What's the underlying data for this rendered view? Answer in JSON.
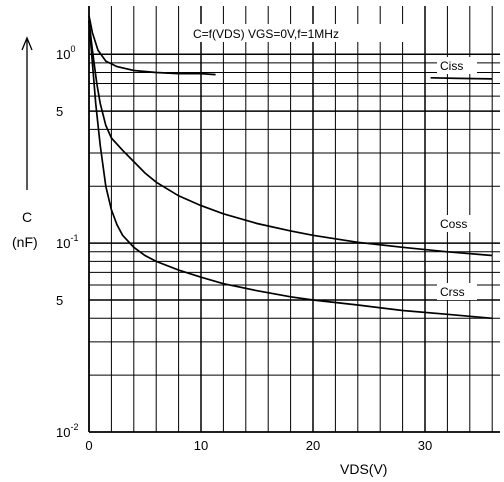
{
  "chart_data": {
    "type": "line",
    "title": "C=f(VDS) VGS=0V,f=1MHz",
    "xlabel": "VDS(V)",
    "ylabel": "C",
    "ylabel_unit": "(nF)",
    "xlim": [
      0,
      36
    ],
    "ylim": [
      0.01,
      2
    ],
    "x_scale": "linear",
    "y_scale": "log",
    "grid": true,
    "x_ticks": [
      "0",
      "10",
      "20",
      "30"
    ],
    "y_ticks": [
      {
        "value": 1,
        "label": "10",
        "sup": "0"
      },
      {
        "value": 0.5,
        "label": "5",
        "sup": ""
      },
      {
        "value": 0.1,
        "label": "10",
        "sup": "-1"
      },
      {
        "value": 0.05,
        "label": "5",
        "sup": ""
      },
      {
        "value": 0.01,
        "label": "10",
        "sup": "-2"
      }
    ],
    "series": [
      {
        "name": "Ciss",
        "x": [
          0,
          0.3,
          0.8,
          1.5,
          2.5,
          4,
          6,
          8,
          10,
          11.3
        ],
        "y": [
          1.6,
          1.3,
          1.05,
          0.92,
          0.86,
          0.82,
          0.8,
          0.79,
          0.79,
          0.78
        ]
      },
      {
        "name": "Ciss",
        "x": [
          30.5,
          33,
          36
        ],
        "y": [
          0.75,
          0.745,
          0.74
        ]
      },
      {
        "name": "Coss",
        "x": [
          0,
          0.3,
          0.7,
          1,
          1.5,
          2,
          3,
          4,
          5,
          6,
          8,
          10,
          12,
          15,
          18,
          20,
          24,
          28,
          32,
          36
        ],
        "y": [
          1.5,
          1.05,
          0.7,
          0.55,
          0.42,
          0.36,
          0.31,
          0.27,
          0.235,
          0.21,
          0.178,
          0.158,
          0.143,
          0.127,
          0.116,
          0.11,
          0.101,
          0.095,
          0.09,
          0.086
        ]
      },
      {
        "name": "Crss",
        "x": [
          0,
          0.3,
          0.6,
          1,
          1.5,
          2,
          2.5,
          3,
          4,
          5,
          6,
          8,
          10,
          12,
          15,
          18,
          20,
          24,
          28,
          32,
          36
        ],
        "y": [
          1.5,
          0.9,
          0.55,
          0.33,
          0.2,
          0.15,
          0.125,
          0.11,
          0.095,
          0.086,
          0.08,
          0.072,
          0.066,
          0.061,
          0.056,
          0.052,
          0.05,
          0.047,
          0.044,
          0.042,
          0.04
        ]
      }
    ]
  }
}
